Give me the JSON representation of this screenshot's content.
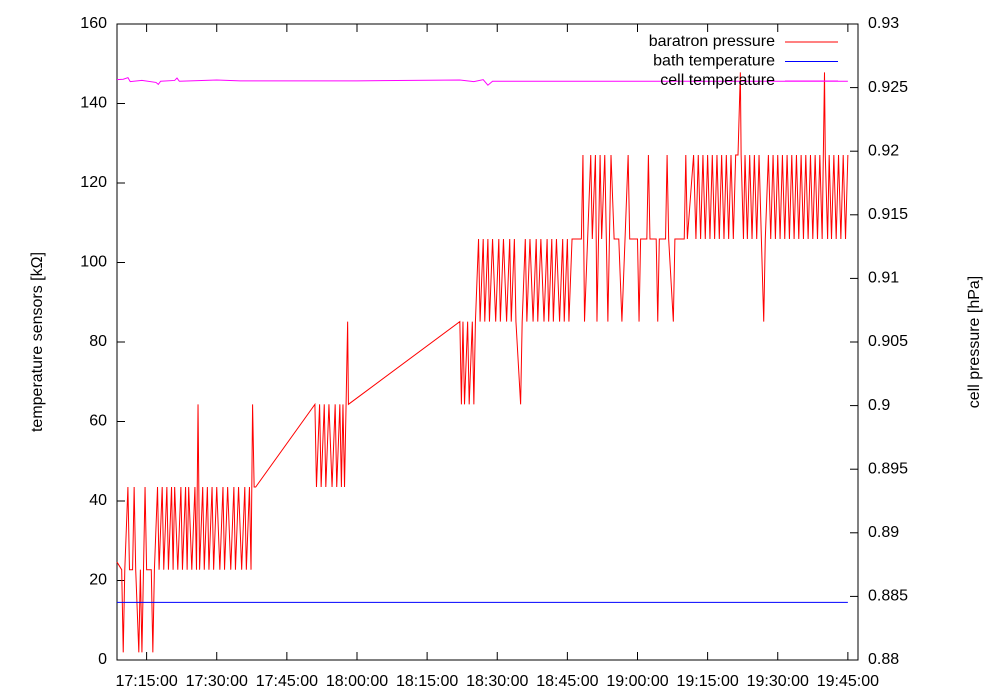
{
  "chart_data": {
    "type": "line",
    "ylabel": "temperature sensors [kΩ]",
    "y2label": "cell pressure [hPa]",
    "xlim": [
      "17:08:40",
      "19:47:10"
    ],
    "xticks": [
      "17:15:00",
      "17:30:00",
      "17:45:00",
      "18:00:00",
      "18:15:00",
      "18:30:00",
      "18:45:00",
      "19:00:00",
      "19:15:00",
      "19:30:00",
      "19:45:00"
    ],
    "ylim": [
      0,
      160
    ],
    "yticks": [
      0,
      20,
      40,
      60,
      80,
      100,
      120,
      140,
      160
    ],
    "y2lim": [
      0.88,
      0.93
    ],
    "y2ticks": [
      0.88,
      0.885,
      0.89,
      0.895,
      0.9,
      0.905,
      0.91,
      0.915,
      0.92,
      0.925,
      0.93
    ],
    "legend": "top right",
    "series": [
      {
        "name": "baratron pressure",
        "color": "#ff0000",
        "axis": "y2",
        "x": [
          "17:08:40",
          "17:09:40",
          "17:10:00",
          "17:10:20",
          "17:11:00",
          "17:11:20",
          "17:12:00",
          "17:12:20",
          "17:12:40",
          "17:13:20",
          "17:13:40",
          "17:14:00",
          "17:14:20",
          "17:14:40",
          "17:15:00",
          "17:16:00",
          "17:16:20",
          "17:16:40",
          "17:17:20",
          "17:17:40",
          "17:18:20",
          "17:18:40",
          "17:19:20",
          "17:19:40",
          "17:20:20",
          "17:20:40",
          "17:21:00",
          "17:21:40",
          "17:22:20",
          "17:22:40",
          "17:23:20",
          "17:23:40",
          "17:24:00",
          "17:24:40",
          "17:25:20",
          "17:25:40",
          "17:26:00",
          "17:26:20",
          "17:27:00",
          "17:27:20",
          "17:28:00",
          "17:28:20",
          "17:29:00",
          "17:29:20",
          "17:30:00",
          "17:30:40",
          "17:31:20",
          "17:31:40",
          "17:32:20",
          "17:33:00",
          "17:33:40",
          "17:34:00",
          "17:34:40",
          "17:35:20",
          "17:36:00",
          "17:36:20",
          "17:37:00",
          "17:37:20",
          "17:37:40",
          "17:38:00",
          "17:38:20",
          "17:51:00",
          "17:51:20",
          "17:52:00",
          "17:52:20",
          "17:53:00",
          "17:53:20",
          "17:54:00",
          "17:54:40",
          "17:55:20",
          "17:55:40",
          "17:56:20",
          "17:56:40",
          "17:57:00",
          "17:57:20",
          "17:57:40",
          "17:58:00",
          "17:58:10",
          "18:22:00",
          "18:22:20",
          "18:22:40",
          "18:23:00",
          "18:23:40",
          "18:24:00",
          "18:24:40",
          "18:25:00",
          "18:25:20",
          "18:26:00",
          "18:26:20",
          "18:27:00",
          "18:27:20",
          "18:28:00",
          "18:28:20",
          "18:29:00",
          "18:29:40",
          "18:30:20",
          "18:30:40",
          "18:31:20",
          "18:32:00",
          "18:32:40",
          "18:33:00",
          "18:33:40",
          "18:34:00",
          "18:35:00",
          "18:35:20",
          "18:36:00",
          "18:36:20",
          "18:37:00",
          "18:37:40",
          "18:38:20",
          "18:38:40",
          "18:39:20",
          "18:40:00",
          "18:40:40",
          "18:41:00",
          "18:41:40",
          "18:42:00",
          "18:42:40",
          "18:43:20",
          "18:44:00",
          "18:44:20",
          "18:45:00",
          "18:45:20",
          "18:46:00",
          "18:48:00",
          "18:48:20",
          "18:48:40",
          "18:49:20",
          "18:50:00",
          "18:50:20",
          "18:51:00",
          "18:51:20",
          "18:52:00",
          "18:52:20",
          "18:53:00",
          "18:53:40",
          "18:54:20",
          "18:55:00",
          "18:56:00",
          "18:56:40",
          "18:57:20",
          "18:58:00",
          "18:58:20",
          "19:00:00",
          "19:00:20",
          "19:00:40",
          "19:02:00",
          "19:02:20",
          "19:02:40",
          "19:04:00",
          "19:04:20",
          "19:04:40",
          "19:06:00",
          "19:06:20",
          "19:06:40",
          "19:07:40",
          "19:08:00",
          "19:10:00",
          "19:10:20",
          "19:10:40",
          "19:12:00",
          "19:12:30",
          "19:13:00",
          "19:13:30",
          "19:14:00",
          "19:14:30",
          "19:15:00",
          "19:15:30",
          "19:16:00",
          "19:16:30",
          "19:17:00",
          "19:17:30",
          "19:18:00",
          "19:18:30",
          "19:19:00",
          "19:19:30",
          "19:20:00",
          "19:20:30",
          "19:21:00",
          "19:21:30",
          "19:22:00",
          "19:22:10",
          "19:22:40",
          "19:23:00",
          "19:23:30",
          "19:24:00",
          "19:24:30",
          "19:25:00",
          "19:25:30",
          "19:26:00",
          "19:26:30",
          "19:27:00",
          "19:27:20",
          "19:28:00",
          "19:28:30",
          "19:29:00",
          "19:29:30",
          "19:30:00",
          "19:30:30",
          "19:31:00",
          "19:31:30",
          "19:32:00",
          "19:32:30",
          "19:33:00",
          "19:33:30",
          "19:34:00",
          "19:34:30",
          "19:35:00",
          "19:35:30",
          "19:36:00",
          "19:36:30",
          "19:37:00",
          "19:37:30",
          "19:38:00",
          "19:38:30",
          "19:39:00",
          "19:39:30",
          "19:40:00",
          "19:40:10",
          "19:40:40",
          "19:41:00",
          "19:41:30",
          "19:42:00",
          "19:42:30",
          "19:43:00",
          "19:43:30",
          "19:44:00",
          "19:44:30",
          "19:45:00"
        ],
        "values": [
          0.8877,
          0.8871,
          0.8806,
          0.8871,
          0.8936,
          0.8871,
          0.8871,
          0.8936,
          0.8871,
          0.8806,
          0.8871,
          0.8806,
          0.8871,
          0.8936,
          0.8871,
          0.8871,
          0.8806,
          0.8871,
          0.8936,
          0.8871,
          0.8936,
          0.8871,
          0.8936,
          0.8871,
          0.8936,
          0.8871,
          0.8936,
          0.8871,
          0.8936,
          0.8871,
          0.8936,
          0.8871,
          0.8936,
          0.8871,
          0.8936,
          0.8871,
          0.9001,
          0.8871,
          0.8936,
          0.8871,
          0.8936,
          0.8871,
          0.8936,
          0.8871,
          0.8936,
          0.8871,
          0.8936,
          0.8871,
          0.8936,
          0.8871,
          0.8936,
          0.8871,
          0.8936,
          0.8871,
          0.8936,
          0.8871,
          0.8936,
          0.8871,
          0.9001,
          0.8936,
          0.8936,
          0.9001,
          0.8936,
          0.9001,
          0.8936,
          0.9001,
          0.8936,
          0.9001,
          0.8936,
          0.9001,
          0.8936,
          0.9001,
          0.8936,
          0.9001,
          0.8936,
          0.9001,
          0.9066,
          0.9001,
          0.9066,
          0.9001,
          0.9066,
          0.9001,
          0.9066,
          0.9001,
          0.9066,
          0.9001,
          0.9066,
          0.9131,
          0.9066,
          0.9131,
          0.9066,
          0.9131,
          0.9066,
          0.9131,
          0.9066,
          0.9131,
          0.9066,
          0.9131,
          0.9066,
          0.9131,
          0.9066,
          0.9131,
          0.9066,
          0.9001,
          0.9066,
          0.9131,
          0.9066,
          0.9131,
          0.9066,
          0.9131,
          0.9066,
          0.9131,
          0.9066,
          0.9131,
          0.9066,
          0.9131,
          0.9066,
          0.9131,
          0.9066,
          0.9131,
          0.9066,
          0.9131,
          0.9066,
          0.9131,
          0.9131,
          0.9197,
          0.9066,
          0.9131,
          0.9197,
          0.9131,
          0.9197,
          0.9066,
          0.9197,
          0.9131,
          0.9197,
          0.9066,
          0.9197,
          0.9131,
          0.9131,
          0.9066,
          0.9131,
          0.9197,
          0.9131,
          0.9131,
          0.9066,
          0.9131,
          0.9131,
          0.9197,
          0.9131,
          0.9131,
          0.9066,
          0.9131,
          0.9131,
          0.9197,
          0.9131,
          0.9066,
          0.9131,
          0.9131,
          0.9197,
          0.9131,
          0.9197,
          0.9131,
          0.9197,
          0.9131,
          0.9197,
          0.9131,
          0.9197,
          0.9131,
          0.9197,
          0.9131,
          0.9197,
          0.9131,
          0.9197,
          0.9131,
          0.9197,
          0.9131,
          0.9197,
          0.9131,
          0.9197,
          0.9197,
          0.9262,
          0.9197,
          0.9131,
          0.9197,
          0.9131,
          0.9197,
          0.9131,
          0.9197,
          0.9131,
          0.9197,
          0.9131,
          0.9066,
          0.9131,
          0.9197,
          0.9131,
          0.9197,
          0.9131,
          0.9197,
          0.9131,
          0.9197,
          0.9131,
          0.9197,
          0.9131,
          0.9197,
          0.9131,
          0.9197,
          0.9131,
          0.9197,
          0.9131,
          0.9197,
          0.9131,
          0.9197,
          0.9131,
          0.9197,
          0.9131,
          0.9197,
          0.9131,
          0.9262,
          0.9197,
          0.9131,
          0.9197,
          0.9131,
          0.9197,
          0.9131,
          0.9197,
          0.9131,
          0.9197,
          0.9131,
          0.9197
        ]
      },
      {
        "name": "bath temperature",
        "color": "#0000ff",
        "x": [
          "17:08:40",
          "19:45:00"
        ],
        "values": [
          14.5,
          14.5
        ]
      },
      {
        "name": "cell temperature",
        "color": "#ff00ff",
        "x": [
          "17:08:40",
          "17:10:00",
          "17:11:00",
          "17:11:30",
          "17:14:00",
          "17:17:00",
          "17:17:30",
          "17:18:00",
          "17:21:00",
          "17:21:30",
          "17:22:00",
          "17:30:00",
          "17:35:00",
          "18:00:00",
          "18:22:00",
          "18:25:00",
          "18:27:00",
          "18:28:00",
          "18:29:00",
          "19:00:00",
          "19:45:00"
        ],
        "values": [
          146.0,
          146.1,
          146.5,
          145.5,
          145.8,
          145.3,
          144.8,
          145.6,
          145.8,
          146.4,
          145.6,
          145.9,
          145.7,
          145.7,
          145.9,
          145.5,
          146.0,
          144.6,
          145.6,
          145.6,
          145.6
        ]
      }
    ]
  }
}
